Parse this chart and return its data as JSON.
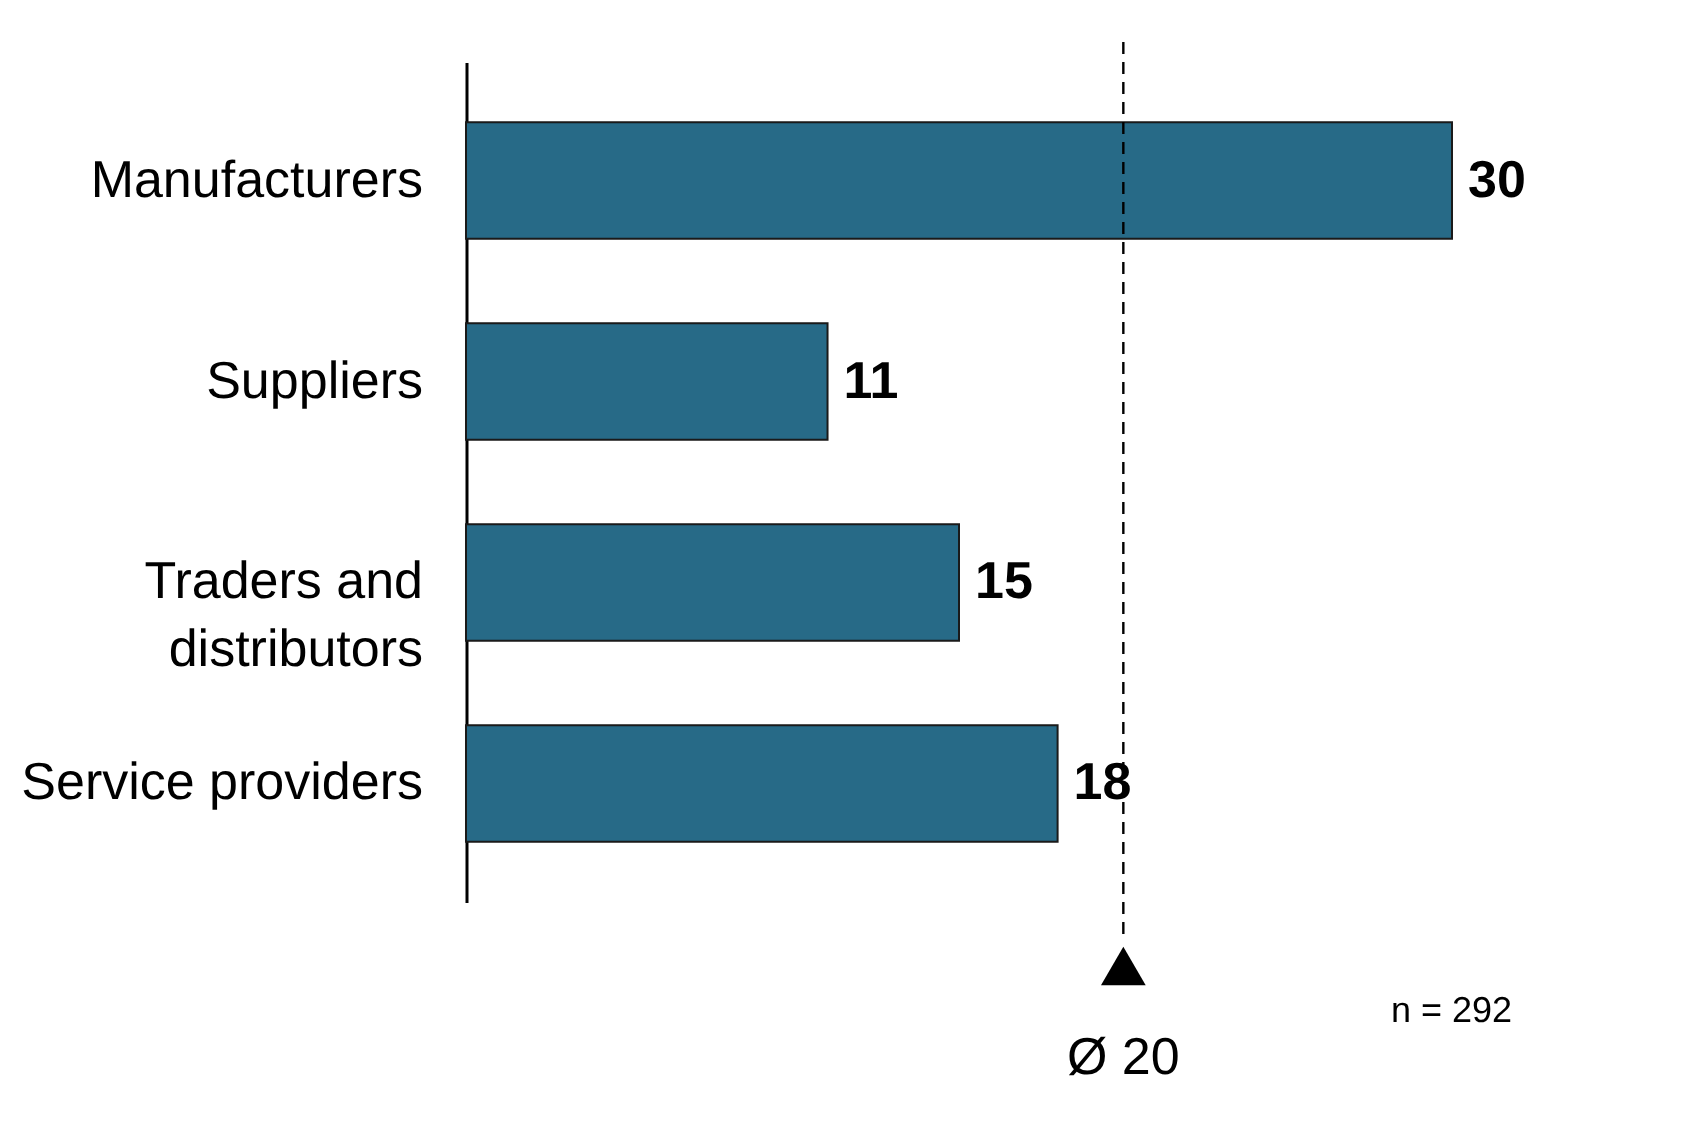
{
  "chart_data": {
    "type": "bar",
    "orientation": "horizontal",
    "categories": [
      "Manufacturers",
      "Suppliers",
      "Traders and distributors",
      "Service providers"
    ],
    "values": [
      30,
      11,
      15,
      18
    ],
    "color": "#276a87",
    "data_labels": true,
    "ref_lines": [
      {
        "axis": "x",
        "value": 20,
        "label": "Ø 20",
        "line_style": "dashed"
      }
    ],
    "annotations": [
      "n = 292"
    ]
  }
}
